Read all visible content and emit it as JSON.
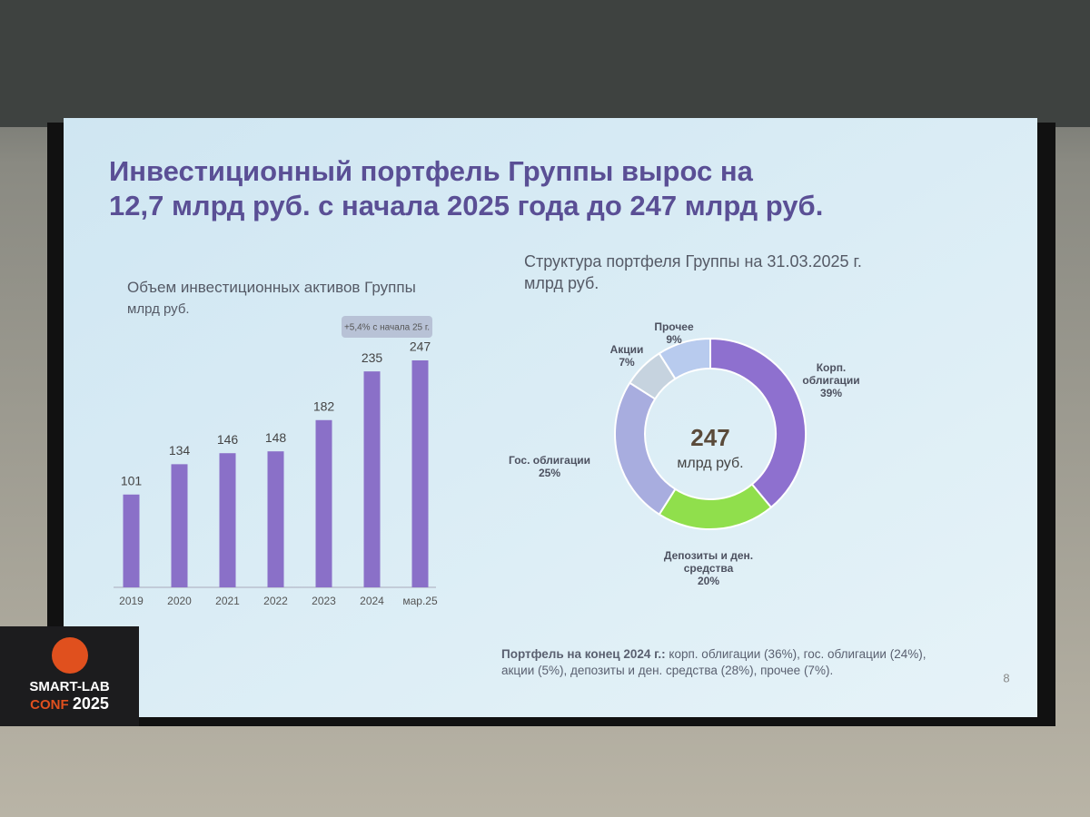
{
  "title_lines": [
    "Инвестиционный портфель Группы вырос на",
    "12,7 млрд руб. с начала 2025 года до 247 млрд руб."
  ],
  "chart_data": [
    {
      "type": "bar",
      "title": "Объем инвестиционных активов Группы",
      "subtitle": "млрд руб.",
      "categories": [
        "2019",
        "2020",
        "2021",
        "2022",
        "2023",
        "2024",
        "мар.25"
      ],
      "values": [
        101,
        134,
        146,
        148,
        182,
        235,
        247
      ],
      "color": "#8a70c8",
      "annotation": "+5,4% с начала 25 г."
    },
    {
      "type": "donut",
      "title": "Структура портфеля Группы на 31.03.2025 г.",
      "subtitle": "млрд руб.",
      "center_value": 247,
      "center_label": "млрд руб.",
      "categories": [
        "Корп. облигации",
        "Депозиты и ден. средства",
        "Гос. облигации",
        "Акции",
        "Прочее"
      ],
      "values": [
        39,
        20,
        25,
        7,
        9
      ],
      "value_labels": [
        "39%",
        "20%",
        "25%",
        "7%",
        "9%"
      ],
      "colors": [
        "#8e70cf",
        "#90df4c",
        "#a8addf",
        "#c6d3df",
        "#b8cbee"
      ]
    }
  ],
  "footnote_label": "Портфель на конец 2024 г.:",
  "footnote": "корп. облигации (36%), гос. облигации (24%), акции (5%), депозиты и ден. средства (28%), прочее (7%).",
  "page_number": 8,
  "badge": {
    "line1": "SMART-LAB",
    "line2": "CONF",
    "line3": "2025"
  }
}
